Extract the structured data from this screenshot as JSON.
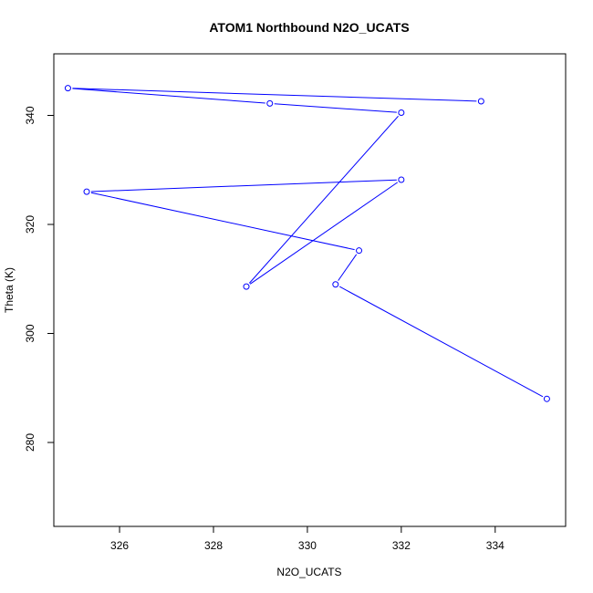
{
  "chart_data": {
    "type": "line",
    "title": "ATOM1 Northbound N2O_UCATS",
    "xlabel": "N2O_UCATS",
    "ylabel": "Theta (K)",
    "xlim": [
      324.6,
      335.5
    ],
    "ylim": [
      264.6,
      351.3
    ],
    "xticks": [
      326,
      328,
      330,
      332,
      334
    ],
    "yticks": [
      280,
      300,
      320,
      340
    ],
    "series": [
      {
        "color": "#0000ff",
        "points": [
          {
            "x": 335.1,
            "y": 288.0
          },
          {
            "x": 330.6,
            "y": 309.0
          },
          {
            "x": 331.1,
            "y": 315.2
          },
          {
            "x": 325.3,
            "y": 326.0
          },
          {
            "x": 332.0,
            "y": 328.2
          },
          {
            "x": 328.7,
            "y": 308.6
          },
          {
            "x": 332.0,
            "y": 340.5
          },
          {
            "x": 329.2,
            "y": 342.2
          },
          {
            "x": 324.9,
            "y": 345.0
          },
          {
            "x": 333.7,
            "y": 342.6
          }
        ]
      }
    ]
  }
}
